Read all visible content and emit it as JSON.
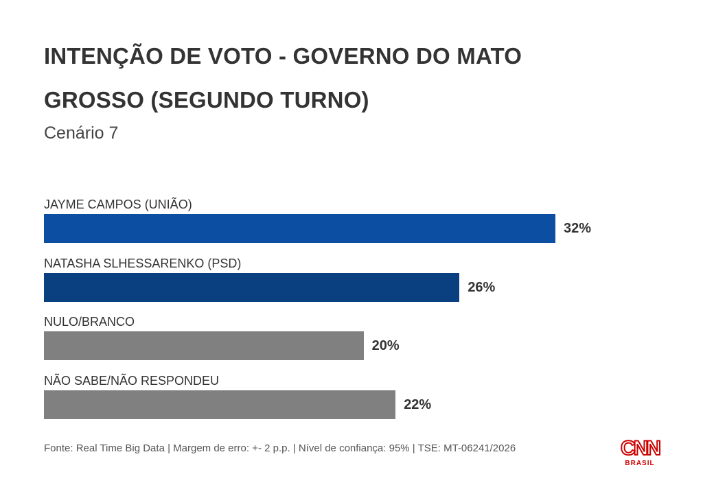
{
  "chart_data": {
    "type": "bar",
    "orientation": "horizontal",
    "title": "INTENÇÃO DE VOTO - GOVERNO DO MATO GROSSO (SEGUNDO TURNO)",
    "subtitle": "Cenário 7",
    "categories": [
      "JAYME CAMPOS (UNIÃO)",
      "NATASHA SLHESSARENKO (PSD)",
      "NULO/BRANCO",
      "NÃO SABE/NÃO RESPONDEU"
    ],
    "values": [
      32,
      26,
      20,
      22
    ],
    "value_labels": [
      "32%",
      "26%",
      "20%",
      "22%"
    ],
    "colors": [
      "#0b4ea2",
      "#0a3f80",
      "#808080",
      "#808080"
    ],
    "xlim": [
      0,
      100
    ],
    "grid": false
  },
  "footer": {
    "source": "Fonte: Real Time Big Data | Margem de erro: +- 2 p.p. | Nível de confiança: 95% | TSE: MT-06241/2026"
  },
  "logo": {
    "main": "CNN",
    "sub": "BRASIL"
  }
}
